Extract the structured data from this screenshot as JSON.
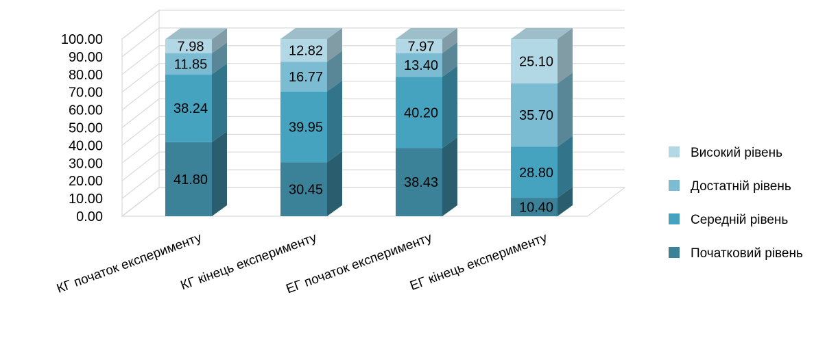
{
  "chart_data": {
    "type": "bar",
    "stacked": true,
    "three_d": true,
    "title": "",
    "xlabel": "",
    "ylabel": "",
    "ylim": [
      0,
      100
    ],
    "grid": true,
    "legend_position": "right",
    "y_ticks": [
      "0.00",
      "10.00",
      "20.00",
      "30.00",
      "40.00",
      "50.00",
      "60.00",
      "70.00",
      "80.00",
      "90.00",
      "100.00"
    ],
    "categories": [
      "КГ початок експерименту",
      "КГ кінець експерименту",
      "ЕГ початок експерименту",
      "ЕГ кінець експерименту"
    ],
    "series": [
      {
        "name": "Початковий рівень",
        "values": [
          41.8,
          30.45,
          38.43,
          10.4
        ],
        "labels": [
          "41.80",
          "30.45",
          "38.43",
          "10.40"
        ],
        "color": "#3B8299"
      },
      {
        "name": "Середній рівень",
        "values": [
          38.24,
          39.95,
          40.2,
          28.8
        ],
        "labels": [
          "38.24",
          "39.95",
          "40.20",
          "28.80"
        ],
        "color": "#45A3BF"
      },
      {
        "name": "Достатній рівень",
        "values": [
          11.85,
          16.77,
          13.4,
          35.7
        ],
        "labels": [
          "11.85",
          "16.77",
          "13.40",
          "35.70"
        ],
        "color": "#7CBCD3"
      },
      {
        "name": "Високий рівень",
        "values": [
          7.98,
          12.82,
          7.97,
          25.1
        ],
        "labels": [
          "7.98",
          "12.82",
          "7.97",
          "25.10"
        ],
        "color": "#B3D8E5"
      }
    ],
    "legend_order": [
      "Високий рівень",
      "Достатній рівень",
      "Середній рівень",
      "Початковий рівень"
    ]
  }
}
